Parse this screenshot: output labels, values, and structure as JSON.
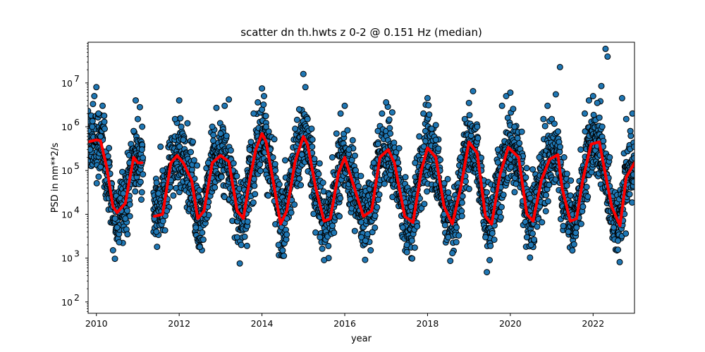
{
  "chart_data": {
    "type": "scatter",
    "title": "scatter dn th.hwts z 0-2 @ 0.151 Hz (median)",
    "xlabel": "year",
    "ylabel": "PSD in nm**2/s",
    "xlim": [
      2009.8,
      2023.0
    ],
    "ylim": [
      55,
      85000000
    ],
    "yscale": "log",
    "grid": false,
    "x_ticks": [
      2010,
      2012,
      2014,
      2016,
      2018,
      2020,
      2022
    ],
    "x_tick_labels": [
      "2010",
      "2012",
      "2014",
      "2016",
      "2018",
      "2020",
      "2022"
    ],
    "y_ticks": [
      100,
      1000,
      10000,
      100000,
      1000000,
      10000000
    ],
    "y_tick_bases": [
      "10",
      "10",
      "10",
      "10",
      "10",
      "10"
    ],
    "y_tick_exponents": [
      "2",
      "3",
      "4",
      "5",
      "6",
      "7"
    ],
    "colors": {
      "scatter_fill": "#1f77b4",
      "scatter_edge": "#000000",
      "median_line": "#ff0000"
    },
    "series": [
      {
        "kind": "scatter",
        "description_points": [
          [
            2009.85,
            300000
          ],
          [
            2009.9,
            1000000
          ],
          [
            2009.95,
            5000000
          ],
          [
            2010.0,
            8000000
          ],
          [
            2010.05,
            2000000
          ],
          [
            2010.1,
            600000
          ],
          [
            2010.15,
            3000000
          ],
          [
            2010.2,
            900000
          ],
          [
            2010.3,
            150000
          ],
          [
            2010.35,
            40000
          ],
          [
            2010.4,
            15000
          ],
          [
            2010.45,
            8000
          ],
          [
            2010.5,
            5000
          ],
          [
            2010.55,
            2300
          ],
          [
            2010.6,
            12000
          ],
          [
            2010.65,
            30000
          ],
          [
            2010.7,
            8000
          ],
          [
            2010.75,
            3500
          ],
          [
            2010.8,
            150000
          ],
          [
            2010.9,
            800000
          ],
          [
            2010.95,
            4000000
          ],
          [
            2011.0,
            1500000
          ],
          [
            2011.05,
            2800000
          ],
          [
            2011.1,
            300000
          ],
          [
            2011.4,
            8000
          ],
          [
            2011.45,
            4000
          ],
          [
            2011.5,
            30000
          ],
          [
            2011.55,
            350000
          ],
          [
            2011.6,
            100000
          ],
          [
            2011.7,
            12000
          ],
          [
            2011.8,
            60000
          ],
          [
            2011.9,
            1500000
          ],
          [
            2012.0,
            4000000
          ],
          [
            2012.05,
            1000000
          ],
          [
            2012.1,
            500000
          ],
          [
            2012.2,
            1200000
          ],
          [
            2012.3,
            80000
          ],
          [
            2012.4,
            5000
          ],
          [
            2012.5,
            1800
          ],
          [
            2012.6,
            10000
          ],
          [
            2012.7,
            150000
          ],
          [
            2012.8,
            1000000
          ],
          [
            2012.9,
            2700000
          ],
          [
            2013.0,
            700000
          ],
          [
            2013.1,
            3000000
          ],
          [
            2013.2,
            4200000
          ],
          [
            2013.3,
            100000
          ],
          [
            2013.4,
            3000
          ],
          [
            2013.5,
            2000
          ],
          [
            2013.6,
            15000
          ],
          [
            2013.7,
            300000
          ],
          [
            2013.8,
            2000000
          ],
          [
            2013.9,
            3600000
          ],
          [
            2014.0,
            7500000
          ],
          [
            2014.05,
            5000000
          ],
          [
            2014.1,
            1000000
          ],
          [
            2014.2,
            300000
          ],
          [
            2014.3,
            20000
          ],
          [
            2014.4,
            2000
          ],
          [
            2014.5,
            1500
          ],
          [
            2014.6,
            8000
          ],
          [
            2014.7,
            100000
          ],
          [
            2014.8,
            900000
          ],
          [
            2014.9,
            2500000
          ],
          [
            2015.0,
            16000000
          ],
          [
            2015.05,
            8000000
          ],
          [
            2015.1,
            1500000
          ],
          [
            2015.2,
            900000
          ],
          [
            2015.3,
            40000
          ],
          [
            2015.4,
            3000
          ],
          [
            2015.5,
            900
          ],
          [
            2015.6,
            8000
          ],
          [
            2015.7,
            200000
          ],
          [
            2015.8,
            700000
          ],
          [
            2015.9,
            2000000
          ],
          [
            2016.0,
            3000000
          ],
          [
            2016.1,
            300000
          ],
          [
            2016.2,
            60000
          ],
          [
            2016.3,
            30000
          ],
          [
            2016.4,
            3000
          ],
          [
            2016.5,
            2500
          ],
          [
            2016.6,
            10000
          ],
          [
            2016.7,
            150000
          ],
          [
            2016.8,
            800000
          ],
          [
            2016.9,
            2000000
          ],
          [
            2017.0,
            3600000
          ],
          [
            2017.1,
            700000
          ],
          [
            2017.2,
            200000
          ],
          [
            2017.3,
            60000
          ],
          [
            2017.4,
            5000
          ],
          [
            2017.5,
            2000
          ],
          [
            2017.6,
            15000
          ],
          [
            2017.7,
            150000
          ],
          [
            2017.8,
            600000
          ],
          [
            2017.9,
            2000000
          ],
          [
            2018.0,
            4500000
          ],
          [
            2018.1,
            900000
          ],
          [
            2018.2,
            500000
          ],
          [
            2018.3,
            100000
          ],
          [
            2018.4,
            10000
          ],
          [
            2018.5,
            3000
          ],
          [
            2018.6,
            1300
          ],
          [
            2018.7,
            5000
          ],
          [
            2018.8,
            200000
          ],
          [
            2018.9,
            1500000
          ],
          [
            2019.0,
            3500000
          ],
          [
            2019.1,
            6500000
          ],
          [
            2019.2,
            1000000
          ],
          [
            2019.3,
            100000
          ],
          [
            2019.4,
            3000
          ],
          [
            2019.5,
            900
          ],
          [
            2019.6,
            7000
          ],
          [
            2019.7,
            300000
          ],
          [
            2019.8,
            3000000
          ],
          [
            2019.9,
            5000000
          ],
          [
            2020.0,
            6000000
          ],
          [
            2020.1,
            1000000
          ],
          [
            2020.2,
            200000
          ],
          [
            2020.3,
            20000
          ],
          [
            2020.4,
            3000
          ],
          [
            2020.5,
            2000
          ],
          [
            2020.6,
            20000
          ],
          [
            2020.7,
            200000
          ],
          [
            2020.8,
            1500000
          ],
          [
            2020.9,
            3000000
          ],
          [
            2021.0,
            1500000
          ],
          [
            2021.1,
            5500000
          ],
          [
            2021.2,
            23000000
          ],
          [
            2021.3,
            200000
          ],
          [
            2021.4,
            4000
          ],
          [
            2021.5,
            1500
          ],
          [
            2021.6,
            5000
          ],
          [
            2021.7,
            300000
          ],
          [
            2021.8,
            2000000
          ],
          [
            2021.9,
            4000000
          ],
          [
            2022.0,
            5000000
          ],
          [
            2022.1,
            3500000
          ],
          [
            2022.2,
            8500000
          ],
          [
            2022.3,
            60000000
          ],
          [
            2022.35,
            40000000
          ],
          [
            2022.4,
            200000
          ],
          [
            2022.5,
            5000
          ],
          [
            2022.6,
            2500
          ],
          [
            2022.7,
            4500000
          ],
          [
            2022.8,
            1500000
          ],
          [
            2022.9,
            800000
          ],
          [
            2022.95,
            2000000
          ]
        ]
      },
      {
        "kind": "line",
        "x": [
          2009.8,
          2010.0,
          2010.1,
          2010.25,
          2010.4,
          2010.5,
          2010.6,
          2010.7,
          2010.8,
          2010.9,
          2011.0,
          2011.1,
          2011.4,
          2011.6,
          2011.8,
          2011.95,
          2012.1,
          2012.3,
          2012.45,
          2012.6,
          2012.8,
          2013.0,
          2013.2,
          2013.4,
          2013.55,
          2013.7,
          2013.85,
          2014.0,
          2014.1,
          2014.3,
          2014.45,
          2014.6,
          2014.8,
          2015.0,
          2015.1,
          2015.3,
          2015.5,
          2015.65,
          2015.85,
          2016.0,
          2016.2,
          2016.45,
          2016.65,
          2016.85,
          2017.05,
          2017.2,
          2017.45,
          2017.65,
          2017.85,
          2018.0,
          2018.2,
          2018.4,
          2018.6,
          2018.8,
          2019.0,
          2019.2,
          2019.4,
          2019.55,
          2019.75,
          2019.95,
          2020.2,
          2020.4,
          2020.55,
          2020.75,
          2020.95,
          2021.15,
          2021.25,
          2021.45,
          2021.6,
          2021.75,
          2021.95,
          2022.15,
          2022.3,
          2022.45,
          2022.65,
          2022.8,
          2023.0
        ],
        "y": [
          450000,
          500000,
          480000,
          120000,
          15000,
          11000,
          14000,
          18000,
          60000,
          200000,
          150000,
          150000,
          9000,
          10000,
          150000,
          220000,
          150000,
          60000,
          8000,
          12000,
          150000,
          220000,
          160000,
          12000,
          8000,
          60000,
          300000,
          700000,
          450000,
          40000,
          6000,
          12000,
          160000,
          600000,
          400000,
          40000,
          7000,
          8000,
          90000,
          200000,
          50000,
          9000,
          12000,
          200000,
          300000,
          150000,
          9000,
          6500,
          100000,
          330000,
          200000,
          15000,
          6000,
          40000,
          450000,
          250000,
          9000,
          6000,
          80000,
          340000,
          200000,
          10000,
          7000,
          60000,
          180000,
          230000,
          40000,
          7000,
          8000,
          60000,
          400000,
          450000,
          80000,
          15000,
          5500,
          70000,
          150000
        ]
      }
    ]
  }
}
